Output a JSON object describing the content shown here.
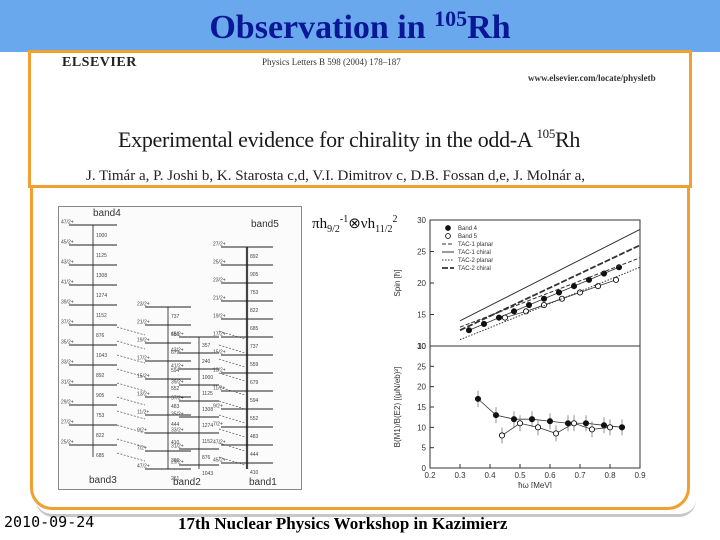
{
  "title": {
    "text": "Observation in ",
    "mass": "105",
    "element": "Rh"
  },
  "paper": {
    "publisher": "ELSEVIER",
    "journal": "Physics Letters B 598 (2004) 178–187",
    "url": "www.elsevier.com/locate/physletb",
    "headline": "Experimental evidence for chirality in the odd-A ",
    "headline_mass": "105",
    "headline_element": "Rh",
    "authors": "J. Timár a, P. Joshi b, K. Starosta c,d, V.I. Dimitrov c, D.B. Fossan d,e, J. Molnár a,"
  },
  "level_scheme": {
    "bands": [
      "band4",
      "band5",
      "band3",
      "band2",
      "band1"
    ],
    "spins": [
      "47/2+",
      "45/2+",
      "43/2+",
      "41/2+",
      "39/2+",
      "37/2+",
      "35/2+",
      "33/2+",
      "31/2+",
      "29/2+",
      "27/2+",
      "25/2+",
      "23/2+",
      "21/2+",
      "19/2+",
      "17/2+",
      "15/2+",
      "13/2+",
      "11/2+",
      "9/2+",
      "7/2+"
    ],
    "energies": [
      "1000",
      "1125",
      "1308",
      "1274",
      "1152",
      "876",
      "1043",
      "892",
      "905",
      "753",
      "822",
      "685",
      "737",
      "559",
      "679",
      "594",
      "552",
      "483",
      "444",
      "410",
      "396",
      "261",
      "357",
      "240"
    ]
  },
  "configuration": {
    "pi": "πh",
    "pi_sub": "9/2",
    "pi_sup": "-1",
    "times": "⊗",
    "nu": "νh",
    "nu_sub": "11/2",
    "nu_sup": "2"
  },
  "chart_data": [
    {
      "type": "line",
      "ylabel": "Spin [ħ]",
      "xlim": [
        0.2,
        0.9
      ],
      "ylim": [
        10,
        30
      ],
      "yticks": [
        "10",
        "15",
        "20",
        "25",
        "30"
      ],
      "series": [
        {
          "name": "Band 4",
          "x": [
            0.33,
            0.38,
            0.43,
            0.48,
            0.53,
            0.58,
            0.63,
            0.68,
            0.73,
            0.78,
            0.83
          ],
          "y": [
            12.5,
            13.5,
            14.5,
            15.5,
            16.5,
            17.5,
            18.5,
            19.5,
            20.5,
            21.5,
            22.5
          ]
        },
        {
          "name": "Band 5",
          "x": [
            0.45,
            0.52,
            0.58,
            0.64,
            0.7,
            0.76,
            0.82
          ],
          "y": [
            14.5,
            15.5,
            16.5,
            17.5,
            18.5,
            19.5,
            20.5
          ]
        },
        {
          "name": "TAC-1 planar",
          "x": [
            0.3,
            0.9
          ],
          "y": [
            13,
            24
          ]
        },
        {
          "name": "TAC-1 chiral",
          "x": [
            0.3,
            0.9
          ],
          "y": [
            14,
            28.5
          ]
        },
        {
          "name": "TAC-2 planar",
          "x": [
            0.3,
            0.9
          ],
          "y": [
            11,
            22.5
          ]
        },
        {
          "name": "TAC-2 chiral",
          "x": [
            0.3,
            0.9
          ],
          "y": [
            12.5,
            26
          ]
        }
      ]
    },
    {
      "type": "line",
      "ylabel": "B(M1)/B(E2) [(μN/eb)²]",
      "xlabel": "ħω [MeV]",
      "xlim": [
        0.2,
        0.9
      ],
      "ylim": [
        0,
        30
      ],
      "xticks": [
        "0.2",
        "0.3",
        "0.4",
        "0.5",
        "0.6",
        "0.7",
        "0.8",
        "0.9"
      ],
      "yticks": [
        "0",
        "5",
        "10",
        "15",
        "20",
        "25",
        "30"
      ],
      "series": [
        {
          "name": "Band 4",
          "x": [
            0.36,
            0.42,
            0.48,
            0.54,
            0.6,
            0.66,
            0.72,
            0.78,
            0.84
          ],
          "y": [
            17,
            13,
            12,
            12,
            11.5,
            11,
            11,
            10.5,
            10
          ]
        },
        {
          "name": "Band 5",
          "x": [
            0.44,
            0.5,
            0.56,
            0.62,
            0.68,
            0.74,
            0.8
          ],
          "y": [
            8,
            11,
            10,
            8.5,
            11,
            9.5,
            10
          ]
        }
      ]
    }
  ],
  "footer": {
    "date": "2010-09-24",
    "event": "17th Nuclear Physics Workshop in Kazimierz"
  }
}
